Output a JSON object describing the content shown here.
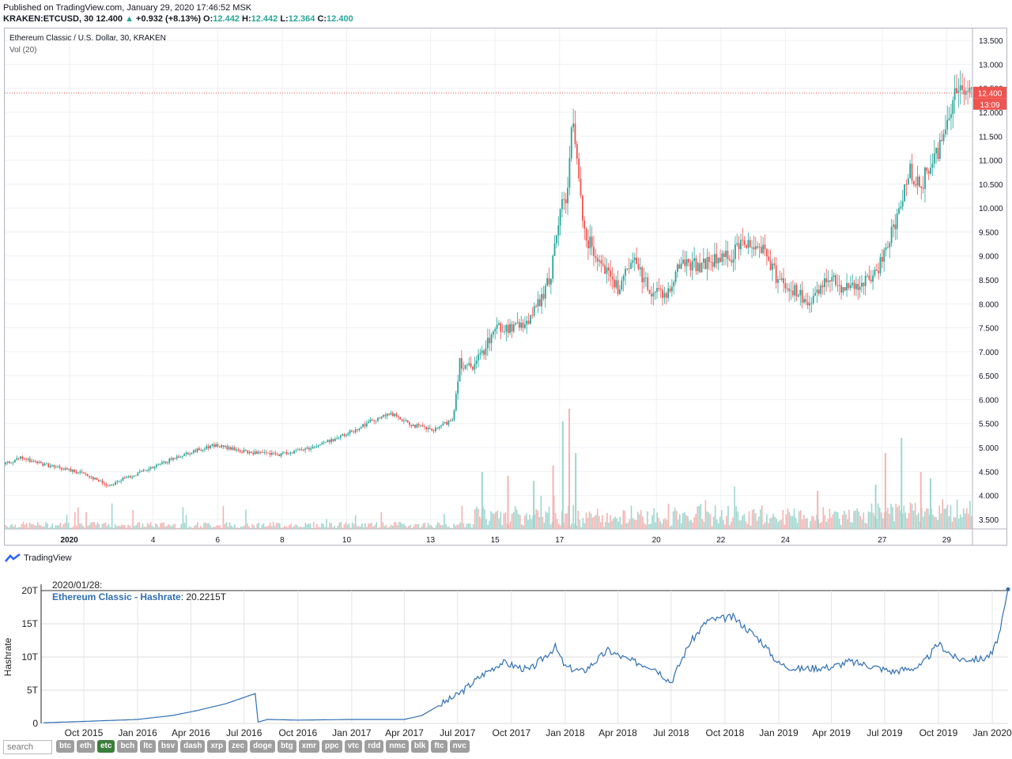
{
  "header": {
    "published": "Published on TradingView.com, January 29, 2020 17:46:52 MSK",
    "symbol": "KRAKEN:ETCUSD, 30",
    "last": "12.400",
    "change": "+0.932 (+8.13%)",
    "open_label": "O:",
    "open": "12.442",
    "high_label": "H:",
    "high": "12.442",
    "low_label": "L:",
    "low": "12.364",
    "close_label": "C:",
    "close": "12.400"
  },
  "brand": "TradingView",
  "colors": {
    "up": "#26a69a",
    "down": "#ef5350",
    "price_line": "#ef5350",
    "hashrate_line": "#2f6fb5",
    "active_tab": "#3b7d3b"
  },
  "chart_data": [
    {
      "type": "candlestick",
      "title": "Ethereum Classic / U.S. Dollar, 30, KRAKEN",
      "indicator": "Vol (20)",
      "xlabel": "",
      "ylabel": "",
      "x_ticks": [
        "2020",
        "4",
        "6",
        "8",
        "10",
        "13",
        "15",
        "17",
        "20",
        "22",
        "24",
        "27",
        "29"
      ],
      "y_ticks": [
        "3.500",
        "4.000",
        "4.500",
        "5.000",
        "5.500",
        "6.000",
        "6.500",
        "7.000",
        "7.500",
        "8.000",
        "8.500",
        "9.000",
        "9.500",
        "10.000",
        "10.500",
        "11.000",
        "11.500",
        "12.000",
        "12.500",
        "13.000",
        "13.500"
      ],
      "ylim": [
        3.3,
        13.75
      ],
      "xlim": [
        0,
        30
      ],
      "last_price_label": "12.400",
      "countdown_label": "13:09",
      "price_path_x": [
        0,
        0.5,
        1.5,
        2.5,
        3.2,
        3.7,
        4.5,
        5.5,
        6.5,
        7.5,
        8.5,
        9.5,
        10.5,
        11.5,
        12.0,
        12.5,
        13.3,
        13.9,
        14.1,
        14.5,
        15.2,
        15.9,
        16.4,
        16.9,
        17.2,
        17.4,
        17.6,
        18.0,
        18.5,
        19.0,
        19.5,
        20.0,
        20.5,
        21.0,
        21.5,
        22.5,
        22.9,
        23.5,
        23.9,
        24.4,
        25.0,
        25.5,
        26.0,
        26.6,
        27.0,
        27.3,
        27.6,
        28.0,
        28.4,
        28.8,
        29.1,
        29.3,
        29.5,
        29.9,
        30.0
      ],
      "price_path_y": [
        4.65,
        4.78,
        4.6,
        4.45,
        4.2,
        4.35,
        4.55,
        4.85,
        5.05,
        4.9,
        4.85,
        5.0,
        5.25,
        5.6,
        5.7,
        5.5,
        5.35,
        5.6,
        6.8,
        6.6,
        7.5,
        7.5,
        7.8,
        8.5,
        9.9,
        10.2,
        11.8,
        9.4,
        8.9,
        8.3,
        8.9,
        8.3,
        8.2,
        8.9,
        8.8,
        9.0,
        9.3,
        9.2,
        8.6,
        8.3,
        7.95,
        8.6,
        8.35,
        8.4,
        8.6,
        9.2,
        9.6,
        10.8,
        10.5,
        11.0,
        11.5,
        12.0,
        12.6,
        12.35,
        12.4
      ],
      "volume_spikes_x": [
        14.8,
        15.6,
        16.4,
        17.0,
        17.3,
        17.5,
        17.7,
        25.2,
        27.0,
        27.3,
        27.8,
        28.4,
        28.7
      ],
      "volume_spikes_rel": [
        0.45,
        0.42,
        0.38,
        0.5,
        0.85,
        0.95,
        0.6,
        0.3,
        0.35,
        0.6,
        0.72,
        0.45,
        0.4
      ]
    },
    {
      "type": "line",
      "title": "",
      "series": [
        {
          "name": "Ethereum Classic - Hashrate",
          "last_value": "20.2215T"
        }
      ],
      "tooltip_date": "2020/01/28:",
      "ylabel": "Hashrate",
      "xlabel": "",
      "y_ticks": [
        "0",
        "5T",
        "10T",
        "15T",
        "20T"
      ],
      "ylim": [
        0,
        20
      ],
      "x_ticks": [
        "Oct 2015",
        "Jan 2016",
        "Apr 2016",
        "Jul 2016",
        "Oct 2016",
        "Jan 2017",
        "Apr 2017",
        "Jul 2017",
        "Oct 2017",
        "Jan 2018",
        "Apr 2018",
        "Jul 2018",
        "Oct 2018",
        "Jan 2019",
        "Apr 2019",
        "Jul 2019",
        "Oct 2019",
        "Jan 2020"
      ],
      "xlim": [
        "2015-07-20",
        "2020-01-28"
      ],
      "x": [
        "2015-07-24",
        "2015-10-01",
        "2016-01-01",
        "2016-03-01",
        "2016-04-15",
        "2016-06-01",
        "2016-07-20",
        "2016-07-25",
        "2016-08-10",
        "2016-10-01",
        "2017-01-01",
        "2017-04-01",
        "2017-05-01",
        "2017-06-01",
        "2017-07-01",
        "2017-08-15",
        "2017-09-15",
        "2017-11-01",
        "2017-12-15",
        "2018-01-01",
        "2018-02-01",
        "2018-03-15",
        "2018-04-20",
        "2018-06-01",
        "2018-07-01",
        "2018-08-01",
        "2018-09-01",
        "2018-10-15",
        "2018-12-01",
        "2019-01-01",
        "2019-02-01",
        "2019-04-01",
        "2019-05-01",
        "2019-06-01",
        "2019-07-15",
        "2019-09-01",
        "2019-10-01",
        "2019-11-01",
        "2019-12-15",
        "2020-01-01",
        "2020-01-15",
        "2020-01-28"
      ],
      "y": [
        0.1,
        0.3,
        0.6,
        1.2,
        2.0,
        3.0,
        4.5,
        0.2,
        0.6,
        0.5,
        0.6,
        0.6,
        1.2,
        2.8,
        4.3,
        7.5,
        9.2,
        8.0,
        11.5,
        8.5,
        7.8,
        11.0,
        9.5,
        8.5,
        6.2,
        12.0,
        15.5,
        16.0,
        12.5,
        9.0,
        8.2,
        8.5,
        9.3,
        8.8,
        7.8,
        8.6,
        12.0,
        9.7,
        9.7,
        10.5,
        14.0,
        20.2
      ]
    }
  ],
  "search": {
    "placeholder": "search"
  },
  "coin_tabs": [
    "btc",
    "eth",
    "etc",
    "bch",
    "ltc",
    "bsv",
    "dash",
    "xrp",
    "zec",
    "doge",
    "btg",
    "xmr",
    "ppc",
    "vtc",
    "rdd",
    "nmc",
    "blk",
    "ftc",
    "nvc"
  ],
  "active_coin": "etc"
}
